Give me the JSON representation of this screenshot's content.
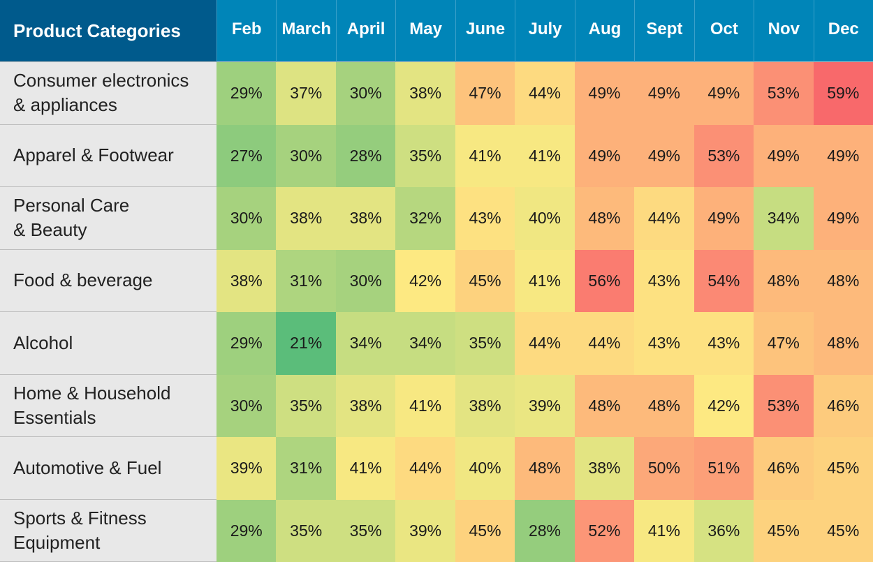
{
  "chart_data": {
    "type": "heatmap",
    "corner_label": "Product Categories",
    "columns": [
      "Feb",
      "March",
      "April",
      "May",
      "June",
      "July",
      "Aug",
      "Sept",
      "Oct",
      "Nov",
      "Dec"
    ],
    "rows": [
      {
        "label": "Consumer electronics\n& appliances",
        "values": [
          29,
          37,
          30,
          38,
          47,
          44,
          49,
          49,
          49,
          53,
          59
        ]
      },
      {
        "label": "Apparel & Footwear",
        "values": [
          27,
          30,
          28,
          35,
          41,
          41,
          49,
          49,
          53,
          49,
          49
        ]
      },
      {
        "label": "Personal Care\n& Beauty",
        "values": [
          30,
          38,
          38,
          32,
          43,
          40,
          48,
          44,
          49,
          34,
          49
        ]
      },
      {
        "label": "Food & beverage",
        "values": [
          38,
          31,
          30,
          42,
          45,
          41,
          56,
          43,
          54,
          48,
          48
        ]
      },
      {
        "label": "Alcohol",
        "values": [
          29,
          21,
          34,
          34,
          35,
          44,
          44,
          43,
          43,
          47,
          48
        ]
      },
      {
        "label": "Home & Household\nEssentials",
        "values": [
          30,
          35,
          38,
          41,
          38,
          39,
          48,
          48,
          42,
          53,
          46
        ]
      },
      {
        "label": "Automotive & Fuel",
        "values": [
          39,
          31,
          41,
          44,
          40,
          48,
          38,
          50,
          51,
          46,
          45
        ]
      },
      {
        "label": "Sports & Fitness\nEquipment",
        "values": [
          29,
          35,
          35,
          39,
          45,
          28,
          52,
          41,
          36,
          45,
          45
        ]
      }
    ],
    "value_suffix": "%",
    "color_scale": {
      "stops": [
        {
          "value": 21,
          "color": "#5bbd7a"
        },
        {
          "value": 30,
          "color": "#a6d27e"
        },
        {
          "value": 36,
          "color": "#d6e282"
        },
        {
          "value": 42,
          "color": "#fde982"
        },
        {
          "value": 47,
          "color": "#fdc37c"
        },
        {
          "value": 52,
          "color": "#fc9677"
        },
        {
          "value": 59,
          "color": "#f8696b"
        }
      ]
    }
  }
}
